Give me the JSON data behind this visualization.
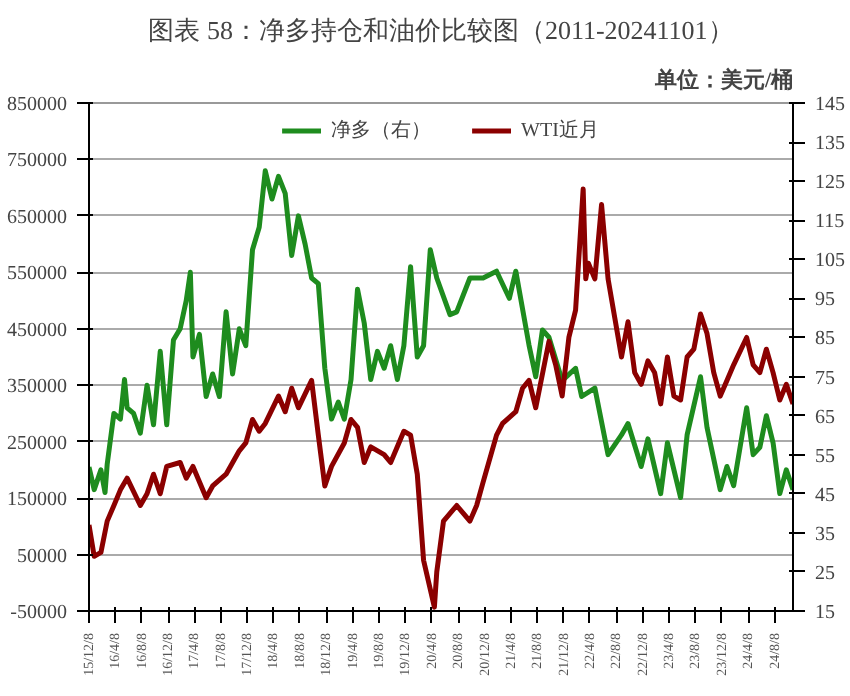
{
  "chart_data": {
    "type": "line",
    "title": "图表 58：净多持仓和油价比较图（2011-20241101）",
    "y2label": "单位：美元/桶",
    "xlim": [
      "2015-12-08",
      "2024-11-01"
    ],
    "xticks": [
      {
        "value": "2015-12-08",
        "label": "15/12/8"
      },
      {
        "value": "2016-04-08",
        "label": "16/4/8"
      },
      {
        "value": "2016-08-08",
        "label": "16/8/8"
      },
      {
        "value": "2016-12-08",
        "label": "16/12/8"
      },
      {
        "value": "2017-04-08",
        "label": "17/4/8"
      },
      {
        "value": "2017-08-08",
        "label": "17/8/8"
      },
      {
        "value": "2017-12-08",
        "label": "17/12/8"
      },
      {
        "value": "2018-04-08",
        "label": "18/4/8"
      },
      {
        "value": "2018-08-08",
        "label": "18/8/8"
      },
      {
        "value": "2018-12-08",
        "label": "18/12/8"
      },
      {
        "value": "2019-04-08",
        "label": "19/4/8"
      },
      {
        "value": "2019-08-08",
        "label": "19/8/8"
      },
      {
        "value": "2019-12-08",
        "label": "19/12/8"
      },
      {
        "value": "2020-04-08",
        "label": "20/4/8"
      },
      {
        "value": "2020-08-08",
        "label": "20/8/8"
      },
      {
        "value": "2020-12-08",
        "label": "20/12/8"
      },
      {
        "value": "2021-04-08",
        "label": "21/4/8"
      },
      {
        "value": "2021-08-08",
        "label": "21/8/8"
      },
      {
        "value": "2021-12-08",
        "label": "21/12/8"
      },
      {
        "value": "2022-04-08",
        "label": "22/4/8"
      },
      {
        "value": "2022-08-08",
        "label": "22/8/8"
      },
      {
        "value": "2022-12-08",
        "label": "22/12/8"
      },
      {
        "value": "2023-04-08",
        "label": "23/4/8"
      },
      {
        "value": "2023-08-08",
        "label": "23/8/8"
      },
      {
        "value": "2023-12-08",
        "label": "23/12/8"
      },
      {
        "value": "2024-04-08",
        "label": "24/4/8"
      },
      {
        "value": "2024-08-08",
        "label": "24/8/8"
      }
    ],
    "ylim": [
      -50000,
      850000
    ],
    "yticks": [
      -50000,
      50000,
      150000,
      250000,
      350000,
      450000,
      550000,
      650000,
      750000,
      850000
    ],
    "y2lim": [
      15,
      145
    ],
    "y2ticks": [
      15,
      25,
      35,
      45,
      55,
      65,
      75,
      85,
      95,
      105,
      115,
      125,
      135,
      145
    ],
    "grid": "y",
    "legend": "top",
    "line_style": "solid",
    "marker": "none",
    "series": [
      {
        "name": "净多（右）",
        "color": "#1e8c1e",
        "x": [
          "2015-12-08",
          "2016-01-01",
          "2016-02-01",
          "2016-02-20",
          "2016-03-01",
          "2016-04-01",
          "2016-05-01",
          "2016-05-20",
          "2016-06-01",
          "2016-07-01",
          "2016-08-01",
          "2016-09-01",
          "2016-10-01",
          "2016-11-01",
          "2016-12-01",
          "2017-01-01",
          "2017-02-01",
          "2017-03-01",
          "2017-03-20",
          "2017-04-01",
          "2017-05-01",
          "2017-06-01",
          "2017-07-01",
          "2017-08-01",
          "2017-09-01",
          "2017-10-01",
          "2017-11-01",
          "2017-12-01",
          "2018-01-01",
          "2018-02-01",
          "2018-03-01",
          "2018-04-01",
          "2018-05-01",
          "2018-06-01",
          "2018-07-01",
          "2018-08-01",
          "2018-09-01",
          "2018-10-01",
          "2018-11-01",
          "2018-12-01",
          "2019-01-01",
          "2019-02-01",
          "2019-03-01",
          "2019-04-01",
          "2019-05-01",
          "2019-06-01",
          "2019-07-01",
          "2019-08-01",
          "2019-09-01",
          "2019-10-01",
          "2019-11-01",
          "2019-12-01",
          "2020-01-01",
          "2020-02-01",
          "2020-03-01",
          "2020-04-01",
          "2020-05-01",
          "2020-07-01",
          "2020-08-01",
          "2020-10-01",
          "2020-12-01",
          "2021-02-01",
          "2021-04-01",
          "2021-05-01",
          "2021-07-01",
          "2021-08-01",
          "2021-09-01",
          "2021-10-01",
          "2021-12-01",
          "2022-02-01",
          "2022-03-01",
          "2022-05-01",
          "2022-07-01",
          "2022-09-01",
          "2022-10-01",
          "2022-12-01",
          "2023-01-01",
          "2023-03-01",
          "2023-04-01",
          "2023-06-01",
          "2023-07-01",
          "2023-09-01",
          "2023-10-01",
          "2023-12-01",
          "2024-01-01",
          "2024-02-01",
          "2024-04-01",
          "2024-05-01",
          "2024-06-01",
          "2024-07-01",
          "2024-08-01",
          "2024-09-01",
          "2024-10-01",
          "2024-11-01"
        ],
        "values": [
          205000,
          165000,
          200000,
          160000,
          210000,
          300000,
          290000,
          360000,
          310000,
          300000,
          265000,
          350000,
          280000,
          410000,
          280000,
          430000,
          450000,
          500000,
          550000,
          400000,
          440000,
          330000,
          370000,
          330000,
          480000,
          370000,
          450000,
          420000,
          590000,
          630000,
          730000,
          680000,
          720000,
          690000,
          580000,
          650000,
          600000,
          540000,
          530000,
          380000,
          290000,
          320000,
          290000,
          360000,
          520000,
          460000,
          360000,
          410000,
          380000,
          420000,
          360000,
          420000,
          560000,
          400000,
          420000,
          590000,
          540000,
          475000,
          480000,
          540000,
          540000,
          552000,
          504000,
          552000,
          421000,
          365000,
          448000,
          435000,
          358000,
          380000,
          330000,
          345000,
          227000,
          262000,
          282000,
          206000,
          255000,
          158000,
          248000,
          151000,
          262000,
          365000,
          275000,
          165000,
          206000,
          172000,
          310000,
          227000,
          240000,
          296000,
          248000,
          158000,
          200000,
          165000
        ]
      },
      {
        "name": "WTI近月",
        "color": "#8b0000",
        "axis": "y2",
        "x": [
          "2015-12-08",
          "2016-01-01",
          "2016-02-01",
          "2016-03-01",
          "2016-04-01",
          "2016-05-01",
          "2016-06-01",
          "2016-08-01",
          "2016-09-01",
          "2016-10-01",
          "2016-11-01",
          "2016-12-01",
          "2017-02-01",
          "2017-03-01",
          "2017-04-01",
          "2017-06-01",
          "2017-07-01",
          "2017-09-01",
          "2017-11-01",
          "2017-12-01",
          "2018-01-01",
          "2018-02-01",
          "2018-03-01",
          "2018-05-01",
          "2018-06-01",
          "2018-07-01",
          "2018-08-01",
          "2018-10-01",
          "2018-11-01",
          "2018-12-01",
          "2019-01-01",
          "2019-03-01",
          "2019-04-01",
          "2019-05-01",
          "2019-06-01",
          "2019-07-01",
          "2019-09-01",
          "2019-10-01",
          "2019-12-01",
          "2020-01-01",
          "2020-02-01",
          "2020-03-01",
          "2020-04-20",
          "2020-05-01",
          "2020-06-01",
          "2020-08-01",
          "2020-10-01",
          "2020-11-01",
          "2020-12-01",
          "2021-02-01",
          "2021-03-01",
          "2021-05-01",
          "2021-06-01",
          "2021-07-01",
          "2021-08-01",
          "2021-10-01",
          "2021-11-01",
          "2021-12-01",
          "2022-01-01",
          "2022-02-01",
          "2022-03-08",
          "2022-03-20",
          "2022-04-01",
          "2022-05-01",
          "2022-06-01",
          "2022-07-01",
          "2022-08-01",
          "2022-09-01",
          "2022-10-01",
          "2022-11-01",
          "2022-12-01",
          "2023-01-01",
          "2023-02-01",
          "2023-03-01",
          "2023-04-01",
          "2023-05-01",
          "2023-06-01",
          "2023-07-01",
          "2023-08-01",
          "2023-09-01",
          "2023-10-01",
          "2023-11-01",
          "2023-12-01",
          "2024-01-01",
          "2024-02-01",
          "2024-04-01",
          "2024-05-01",
          "2024-06-01",
          "2024-07-01",
          "2024-08-01",
          "2024-09-01",
          "2024-10-01",
          "2024-11-01"
        ],
        "values": [
          37,
          29,
          30,
          38,
          42,
          46,
          49,
          42,
          45,
          50,
          45,
          52,
          53,
          49,
          52,
          44,
          47,
          50,
          56,
          58,
          64,
          61,
          63,
          70,
          66,
          72,
          67,
          74,
          60,
          47,
          52,
          58,
          64,
          62,
          53,
          57,
          55,
          53,
          61,
          60,
          50,
          28,
          16,
          25,
          38,
          42,
          38,
          42,
          48,
          60,
          63,
          66,
          72,
          74,
          67,
          84,
          78,
          70,
          85,
          92,
          123,
          100,
          104,
          100,
          119,
          100,
          90,
          80,
          89,
          76,
          73,
          79,
          76,
          68,
          80,
          70,
          69,
          80,
          82,
          91,
          86,
          76,
          70,
          74,
          78,
          85,
          78,
          76,
          82,
          76,
          69,
          73,
          68
        ]
      }
    ]
  }
}
